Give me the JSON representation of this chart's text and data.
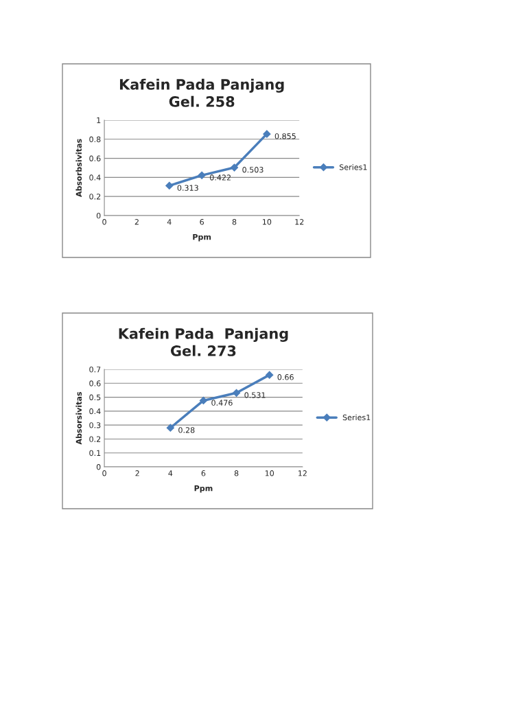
{
  "chart_data": [
    {
      "type": "line",
      "title": "Kafein Pada Panjang\nGel. 258",
      "xlabel": "Ppm",
      "ylabel": "Absorbsivitas",
      "x": [
        4,
        6,
        8,
        10
      ],
      "series": [
        {
          "name": "Series1",
          "color": "#4a7ebb",
          "values": [
            0.313,
            0.422,
            0.503,
            0.855
          ]
        }
      ],
      "xlim": [
        0,
        12
      ],
      "xticks": [
        0,
        2,
        4,
        6,
        8,
        10,
        12
      ],
      "ylim": [
        0,
        1
      ],
      "yticks": [
        0,
        0.2,
        0.4,
        0.6,
        0.8,
        1
      ],
      "grid": "y",
      "legend": "right",
      "marker": "diamond",
      "line_style": "solid",
      "data_labels": true
    },
    {
      "type": "line",
      "title": "Kafein Pada  Panjang\nGel. 273",
      "xlabel": "Ppm",
      "ylabel": "Absorsivitas",
      "x": [
        4,
        6,
        8,
        10
      ],
      "series": [
        {
          "name": "Series1",
          "color": "#4a7ebb",
          "values": [
            0.28,
            0.476,
            0.531,
            0.66
          ]
        }
      ],
      "xlim": [
        0,
        12
      ],
      "xticks": [
        0,
        2,
        4,
        6,
        8,
        10,
        12
      ],
      "ylim": [
        0,
        0.7
      ],
      "yticks": [
        0,
        0.1,
        0.2,
        0.3,
        0.4,
        0.5,
        0.6,
        0.7
      ],
      "grid": "y",
      "legend": "right",
      "marker": "diamond",
      "line_style": "solid",
      "data_labels": true
    }
  ]
}
